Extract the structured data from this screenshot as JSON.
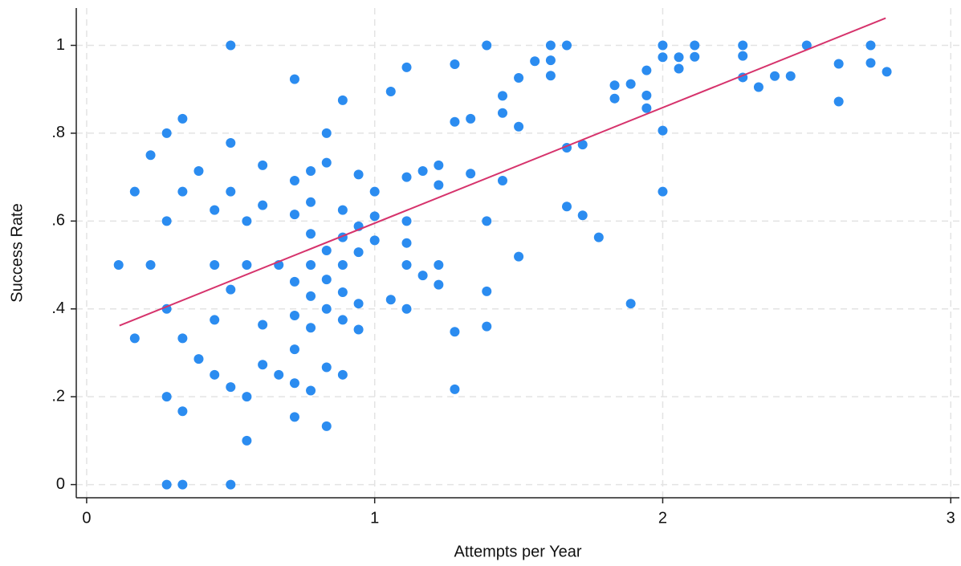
{
  "chart_data": {
    "type": "scatter",
    "x_label": "Attempts per Year",
    "y_label": "Success Rate",
    "xlim": [
      -0.036,
      3.03
    ],
    "ylim": [
      -0.03,
      1.085
    ],
    "xticks": [
      0,
      1,
      2,
      3
    ],
    "yticks": [
      0,
      {
        "value": 0.2,
        "label": ".2"
      },
      {
        "value": 0.4,
        "label": ".4"
      },
      {
        "value": 0.6,
        "label": ".6"
      },
      {
        "value": 0.8,
        "label": ".8"
      },
      1
    ],
    "grid": true,
    "series": [
      {
        "color": "#2b8cf0",
        "x": [
          0.111,
          0.167,
          0.167,
          0.222,
          0.222,
          0.278,
          0.278,
          0.278,
          0.278,
          0.278,
          0.333,
          0.333,
          0.333,
          0.333,
          0.333,
          0.389,
          0.389,
          0.444,
          0.444,
          0.444,
          0.444,
          0.5,
          0.5,
          0.5,
          0.5,
          0.5,
          0.5,
          0.556,
          0.556,
          0.556,
          0.556,
          0.611,
          0.611,
          0.611,
          0.611,
          0.667,
          0.667,
          0.722,
          0.722,
          0.722,
          0.722,
          0.722,
          0.722,
          0.722,
          0.722,
          0.778,
          0.778,
          0.778,
          0.778,
          0.778,
          0.778,
          0.778,
          0.833,
          0.833,
          0.833,
          0.833,
          0.833,
          0.833,
          0.833,
          0.889,
          0.889,
          0.889,
          0.889,
          0.889,
          0.889,
          0.889,
          0.944,
          0.944,
          0.944,
          0.944,
          0.944,
          1,
          1,
          1,
          1.056,
          1.056,
          1.111,
          1.111,
          1.111,
          1.111,
          1.111,
          1.111,
          1.167,
          1.167,
          1.222,
          1.222,
          1.222,
          1.222,
          1.278,
          1.278,
          1.278,
          1.278,
          1.333,
          1.333,
          1.389,
          1.389,
          1.389,
          1.389,
          1.444,
          1.444,
          1.444,
          1.5,
          1.5,
          1.5,
          1.556,
          1.611,
          1.611,
          1.611,
          1.667,
          1.667,
          1.667,
          1.722,
          1.722,
          1.778,
          1.833,
          1.833,
          1.889,
          1.889,
          1.944,
          1.944,
          1.944,
          2,
          2,
          2,
          2,
          2.056,
          2.056,
          2.111,
          2.111,
          2.278,
          2.278,
          2.278,
          2.333,
          2.389,
          2.444,
          2.5,
          2.611,
          2.611,
          2.722,
          2.722,
          2.778
        ],
        "values": [
          0.5,
          0.667,
          0.333,
          0.75,
          0.5,
          0.8,
          0.6,
          0.4,
          0.2,
          0,
          0.833,
          0.667,
          0.333,
          0.167,
          0,
          0.714,
          0.286,
          0.625,
          0.5,
          0.375,
          0.25,
          1,
          0.778,
          0.667,
          0.444,
          0.222,
          0,
          0.6,
          0.5,
          0.2,
          0.1,
          0.727,
          0.636,
          0.364,
          0.273,
          0.5,
          0.25,
          0.923,
          0.692,
          0.615,
          0.462,
          0.385,
          0.308,
          0.231,
          0.154,
          0.714,
          0.643,
          0.571,
          0.5,
          0.429,
          0.357,
          0.214,
          0.8,
          0.733,
          0.533,
          0.467,
          0.4,
          0.267,
          0.133,
          0.875,
          0.625,
          0.563,
          0.5,
          0.438,
          0.375,
          0.25,
          0.706,
          0.588,
          0.529,
          0.412,
          0.353,
          0.667,
          0.611,
          0.556,
          0.895,
          0.421,
          0.95,
          0.7,
          0.6,
          0.55,
          0.5,
          0.4,
          0.714,
          0.476,
          0.727,
          0.682,
          0.5,
          0.455,
          0.957,
          0.826,
          0.348,
          0.217,
          0.833,
          0.708,
          1,
          0.6,
          0.44,
          0.36,
          0.885,
          0.846,
          0.692,
          0.926,
          0.815,
          0.519,
          0.964,
          1,
          0.966,
          0.931,
          1,
          0.767,
          0.633,
          0.774,
          0.613,
          0.563,
          0.909,
          0.879,
          0.912,
          0.412,
          0.943,
          0.886,
          0.857,
          1,
          0.973,
          0.806,
          0.667,
          0.973,
          0.947,
          1,
          0.974,
          1,
          0.976,
          0.927,
          0.905,
          0.93,
          0.93,
          1,
          0.958,
          0.872,
          1,
          0.96,
          0.94
        ]
      }
    ],
    "fit_line": {
      "color": "#d6336c",
      "x": [
        0.114,
        2.774
      ],
      "values": [
        0.362,
        1.062
      ]
    }
  }
}
